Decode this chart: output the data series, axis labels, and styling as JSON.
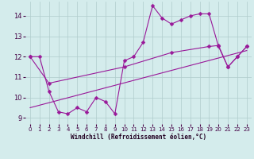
{
  "xlabel": "Windchill (Refroidissement éolien,°C)",
  "xlim": [
    -0.5,
    23.5
  ],
  "ylim": [
    8.7,
    14.7
  ],
  "yticks": [
    9,
    10,
    11,
    12,
    13,
    14
  ],
  "xticks": [
    0,
    1,
    2,
    3,
    4,
    5,
    6,
    7,
    8,
    9,
    10,
    11,
    12,
    13,
    14,
    15,
    16,
    17,
    18,
    19,
    20,
    21,
    22,
    23
  ],
  "bg_color": "#d4ecec",
  "line_color": "#991899",
  "grid_color": "#b0cccc",
  "lines": [
    {
      "x": [
        0,
        1,
        2,
        3,
        4,
        5,
        6,
        7,
        8,
        9,
        10,
        11,
        12,
        13,
        14,
        15,
        16,
        17,
        18,
        19,
        20,
        21,
        22,
        23
      ],
      "y": [
        12,
        12,
        10.3,
        9.3,
        9.2,
        9.5,
        9.3,
        10.0,
        9.8,
        9.2,
        11.8,
        12.0,
        12.7,
        14.5,
        13.9,
        13.6,
        13.8,
        14.0,
        14.1,
        14.1,
        12.5,
        11.5,
        12.0,
        12.5
      ],
      "has_markers": true,
      "markersize": 2.5
    },
    {
      "x": [
        0,
        2,
        10,
        15,
        19,
        20,
        21,
        22,
        23
      ],
      "y": [
        12,
        10.7,
        11.5,
        12.2,
        12.5,
        12.55,
        11.5,
        12.0,
        12.5
      ],
      "has_markers": true,
      "markersize": 2.5
    },
    {
      "x": [
        0,
        23
      ],
      "y": [
        9.5,
        12.3
      ],
      "has_markers": false,
      "markersize": 0
    }
  ]
}
